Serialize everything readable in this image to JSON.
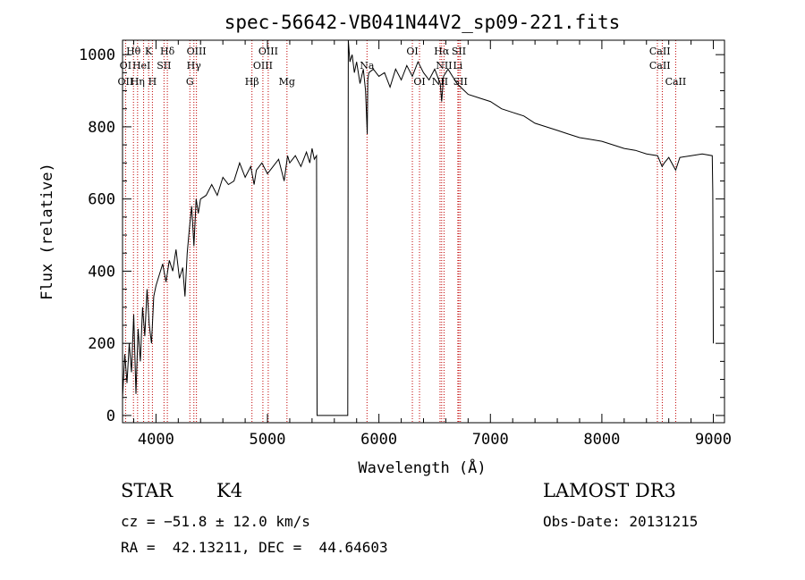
{
  "chart_data": {
    "type": "line",
    "title": "spec-56642-VB041N44V2_sp09-221.fits",
    "xlabel": "Wavelength (Å)",
    "ylabel": "Flux (relative)",
    "xlim": [
      3700,
      9100
    ],
    "ylim": [
      -20,
      1040
    ],
    "xticks": [
      4000,
      5000,
      6000,
      7000,
      8000,
      9000
    ],
    "xtick_labels": [
      "4000",
      "5000",
      "6000",
      "7000",
      "8000",
      "9000"
    ],
    "yticks": [
      0,
      200,
      400,
      600,
      800,
      1000
    ],
    "ytick_labels": [
      "0",
      "200",
      "400",
      "600",
      "800",
      "1000"
    ],
    "series": [
      {
        "name": "flux",
        "x": [
          3700,
          3720,
          3740,
          3760,
          3780,
          3800,
          3820,
          3840,
          3860,
          3880,
          3900,
          3920,
          3940,
          3960,
          3980,
          4000,
          4030,
          4060,
          4090,
          4120,
          4150,
          4180,
          4210,
          4240,
          4260,
          4280,
          4300,
          4320,
          4340,
          4360,
          4380,
          4400,
          4450,
          4500,
          4550,
          4600,
          4650,
          4700,
          4750,
          4800,
          4850,
          4880,
          4900,
          4950,
          5000,
          5050,
          5100,
          5150,
          5180,
          5200,
          5250,
          5300,
          5350,
          5380,
          5400,
          5420,
          5440,
          5445,
          5720,
          5725,
          5740,
          5760,
          5780,
          5800,
          5830,
          5860,
          5880,
          5895,
          5900,
          5910,
          5950,
          6000,
          6050,
          6100,
          6150,
          6200,
          6250,
          6300,
          6350,
          6400,
          6450,
          6500,
          6550,
          6563,
          6580,
          6620,
          6700,
          6800,
          6900,
          7000,
          7100,
          7200,
          7300,
          7400,
          7500,
          7600,
          7700,
          7800,
          7900,
          8000,
          8100,
          8200,
          8300,
          8400,
          8500,
          8540,
          8560,
          8600,
          8662,
          8700,
          8800,
          8900,
          8990,
          8995,
          9000
        ],
        "y": [
          50,
          170,
          90,
          200,
          120,
          280,
          60,
          240,
          150,
          300,
          220,
          350,
          250,
          200,
          330,
          360,
          390,
          420,
          370,
          430,
          400,
          460,
          380,
          410,
          330,
          450,
          520,
          580,
          470,
          600,
          560,
          600,
          610,
          640,
          610,
          660,
          640,
          650,
          700,
          660,
          690,
          640,
          680,
          700,
          670,
          690,
          710,
          650,
          720,
          700,
          720,
          690,
          730,
          700,
          740,
          710,
          720,
          0,
          0,
          1040,
          980,
          1000,
          950,
          980,
          920,
          960,
          900,
          780,
          930,
          950,
          960,
          940,
          950,
          910,
          960,
          930,
          970,
          940,
          980,
          950,
          930,
          960,
          920,
          870,
          940,
          960,
          920,
          890,
          880,
          870,
          850,
          840,
          830,
          810,
          800,
          790,
          780,
          770,
          765,
          760,
          750,
          740,
          735,
          725,
          720,
          690,
          700,
          715,
          680,
          715,
          720,
          725,
          720,
          620,
          200
        ]
      }
    ],
    "lines": [
      {
        "name": "OII",
        "wavelength": 3727
      },
      {
        "name": "Hθ",
        "wavelength": 3798
      },
      {
        "name": "Hη",
        "wavelength": 3835
      },
      {
        "name": "HeI",
        "wavelength": 3889
      },
      {
        "name": "K",
        "wavelength": 3934
      },
      {
        "name": "H",
        "wavelength": 3968
      },
      {
        "name": "Hδ",
        "wavelength": 4102
      },
      {
        "name": "SII",
        "wavelength": 4072
      },
      {
        "name": "G",
        "wavelength": 4304
      },
      {
        "name": "Hγ",
        "wavelength": 4340
      },
      {
        "name": "OIII",
        "wavelength": 4363
      },
      {
        "name": "Hβ",
        "wavelength": 4861
      },
      {
        "name": "OIII",
        "wavelength": 4959
      },
      {
        "name": "OIII",
        "wavelength": 5007
      },
      {
        "name": "Mg",
        "wavelength": 5175
      },
      {
        "name": "Na",
        "wavelength": 5893
      },
      {
        "name": "OI",
        "wavelength": 6300
      },
      {
        "name": "OI",
        "wavelength": 6364
      },
      {
        "name": "NII",
        "wavelength": 6548
      },
      {
        "name": "Hα",
        "wavelength": 6563
      },
      {
        "name": "NII",
        "wavelength": 6584
      },
      {
        "name": "Li",
        "wavelength": 6708
      },
      {
        "name": "SII",
        "wavelength": 6717
      },
      {
        "name": "SII",
        "wavelength": 6731
      },
      {
        "name": "CaII",
        "wavelength": 8498
      },
      {
        "name": "CaII",
        "wavelength": 8542
      },
      {
        "name": "CaII",
        "wavelength": 8662
      }
    ],
    "line_labels": [
      {
        "text": "Hθ",
        "wavelength": 3798,
        "row": 1
      },
      {
        "text": "K",
        "wavelength": 3934,
        "row": 1
      },
      {
        "text": "Hδ",
        "wavelength": 4102,
        "row": 1
      },
      {
        "text": "OIII",
        "wavelength": 4363,
        "row": 1
      },
      {
        "text": "OIII",
        "wavelength": 5007,
        "row": 1
      },
      {
        "text": "OI",
        "wavelength": 6300,
        "row": 1
      },
      {
        "text": "Hα",
        "wavelength": 6563,
        "row": 1
      },
      {
        "text": "SII",
        "wavelength": 6717,
        "row": 1
      },
      {
        "text": "CaII",
        "wavelength": 8520,
        "row": 1
      },
      {
        "text": "OI",
        "wavelength": 3727,
        "row": 2
      },
      {
        "text": "HeI",
        "wavelength": 3870,
        "row": 2
      },
      {
        "text": "SII",
        "wavelength": 4072,
        "row": 2
      },
      {
        "text": "Hγ",
        "wavelength": 4340,
        "row": 2
      },
      {
        "text": "OIII",
        "wavelength": 4959,
        "row": 2
      },
      {
        "text": "Na",
        "wavelength": 5893,
        "row": 2
      },
      {
        "text": "NII",
        "wavelength": 6584,
        "row": 2
      },
      {
        "text": "Li",
        "wavelength": 6708,
        "row": 2
      },
      {
        "text": "CaII",
        "wavelength": 8520,
        "row": 2
      },
      {
        "text": "OII",
        "wavelength": 3727,
        "row": 3
      },
      {
        "text": "Hη",
        "wavelength": 3835,
        "row": 3
      },
      {
        "text": "H",
        "wavelength": 3968,
        "row": 3
      },
      {
        "text": "G",
        "wavelength": 4304,
        "row": 3
      },
      {
        "text": "Hβ",
        "wavelength": 4861,
        "row": 3
      },
      {
        "text": "Mg",
        "wavelength": 5175,
        "row": 3
      },
      {
        "text": "OI",
        "wavelength": 6364,
        "row": 3
      },
      {
        "text": "NII",
        "wavelength": 6548,
        "row": 3
      },
      {
        "text": "SII",
        "wavelength": 6731,
        "row": 3
      },
      {
        "text": "CaII",
        "wavelength": 8662,
        "row": 3
      }
    ]
  },
  "info": {
    "object_class": "STAR",
    "subclass": "K4",
    "survey": "LAMOST DR3",
    "redshift": "cz = −51.8 ± 12.0 km/s",
    "obs_date": "Obs-Date: 20131215",
    "coords": "RA =  42.13211, DEC =  44.64603"
  },
  "colors": {
    "spectrum": "#000000",
    "line_marker": "#c00000",
    "background": "#ffffff"
  }
}
